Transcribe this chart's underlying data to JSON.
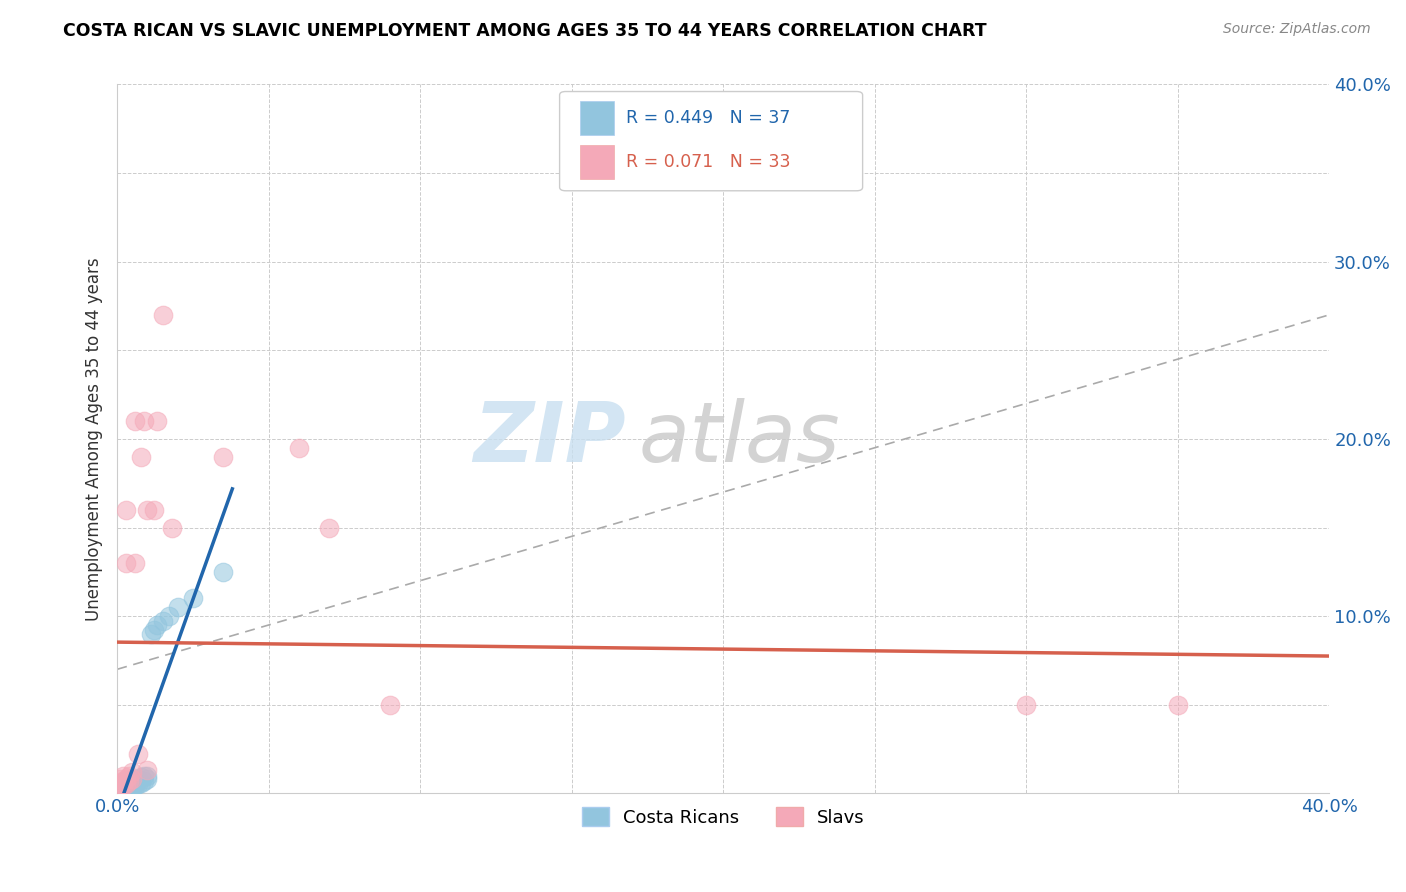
{
  "title": "COSTA RICAN VS SLAVIC UNEMPLOYMENT AMONG AGES 35 TO 44 YEARS CORRELATION CHART",
  "source": "Source: ZipAtlas.com",
  "ylabel": "Unemployment Among Ages 35 to 44 years",
  "xlim": [
    0.0,
    0.4
  ],
  "ylim": [
    0.0,
    0.4
  ],
  "legend_blue_r": "0.449",
  "legend_blue_n": "37",
  "legend_pink_r": "0.071",
  "legend_pink_n": "33",
  "blue_color": "#92c5de",
  "pink_color": "#f4a9b8",
  "blue_line_color": "#2166ac",
  "pink_line_color": "#d6604d",
  "watermark_zip": "ZIP",
  "watermark_atlas": "atlas",
  "costa_rican_x": [
    0.0,
    0.0,
    0.001,
    0.001,
    0.001,
    0.002,
    0.002,
    0.002,
    0.003,
    0.003,
    0.003,
    0.003,
    0.004,
    0.004,
    0.004,
    0.005,
    0.005,
    0.005,
    0.006,
    0.006,
    0.006,
    0.007,
    0.007,
    0.008,
    0.008,
    0.009,
    0.009,
    0.01,
    0.01,
    0.011,
    0.012,
    0.013,
    0.015,
    0.017,
    0.02,
    0.025,
    0.035
  ],
  "costa_rican_y": [
    0.002,
    0.004,
    0.001,
    0.003,
    0.005,
    0.002,
    0.004,
    0.006,
    0.002,
    0.003,
    0.005,
    0.007,
    0.003,
    0.005,
    0.007,
    0.003,
    0.004,
    0.006,
    0.004,
    0.005,
    0.007,
    0.005,
    0.008,
    0.006,
    0.009,
    0.007,
    0.01,
    0.008,
    0.01,
    0.09,
    0.092,
    0.095,
    0.097,
    0.1,
    0.105,
    0.11,
    0.125
  ],
  "slav_x": [
    0.0,
    0.0,
    0.001,
    0.001,
    0.001,
    0.002,
    0.002,
    0.002,
    0.003,
    0.003,
    0.003,
    0.003,
    0.004,
    0.004,
    0.005,
    0.005,
    0.006,
    0.006,
    0.007,
    0.008,
    0.009,
    0.01,
    0.01,
    0.012,
    0.013,
    0.015,
    0.018,
    0.035,
    0.06,
    0.07,
    0.09,
    0.3,
    0.35
  ],
  "slav_y": [
    0.002,
    0.005,
    0.003,
    0.006,
    0.008,
    0.004,
    0.007,
    0.01,
    0.005,
    0.008,
    0.13,
    0.16,
    0.007,
    0.01,
    0.008,
    0.012,
    0.13,
    0.21,
    0.022,
    0.19,
    0.21,
    0.013,
    0.16,
    0.16,
    0.21,
    0.27,
    0.15,
    0.19,
    0.195,
    0.15,
    0.05,
    0.05,
    0.05
  ]
}
